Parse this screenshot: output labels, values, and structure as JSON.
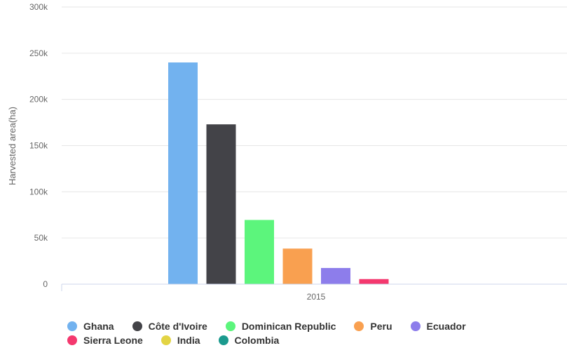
{
  "chart_data": {
    "type": "bar",
    "categories": [
      "2015"
    ],
    "series": [
      {
        "name": "Ghana",
        "values": [
          240000
        ],
        "color": "#72b2ef"
      },
      {
        "name": "Côte d'Ivoire",
        "values": [
          173000
        ],
        "color": "#434348"
      },
      {
        "name": "Dominican Republic",
        "values": [
          69500
        ],
        "color": "#5cf57c"
      },
      {
        "name": "Peru",
        "values": [
          38500
        ],
        "color": "#f9a050"
      },
      {
        "name": "Ecuador",
        "values": [
          17500
        ],
        "color": "#8d7deb"
      },
      {
        "name": "Sierra Leone",
        "values": [
          5500
        ],
        "color": "#f4386e"
      },
      {
        "name": "India",
        "values": [
          0
        ],
        "color": "#e3d444"
      },
      {
        "name": "Colombia",
        "values": [
          0
        ],
        "color": "#1b9a8e"
      }
    ],
    "ylabel": "Harvested area(ha)",
    "ylim": [
      0,
      300000
    ],
    "yticks": [
      "0",
      "50k",
      "100k",
      "150k",
      "200k",
      "250k",
      "300k"
    ],
    "grid": true,
    "legend_position": "bottom"
  }
}
